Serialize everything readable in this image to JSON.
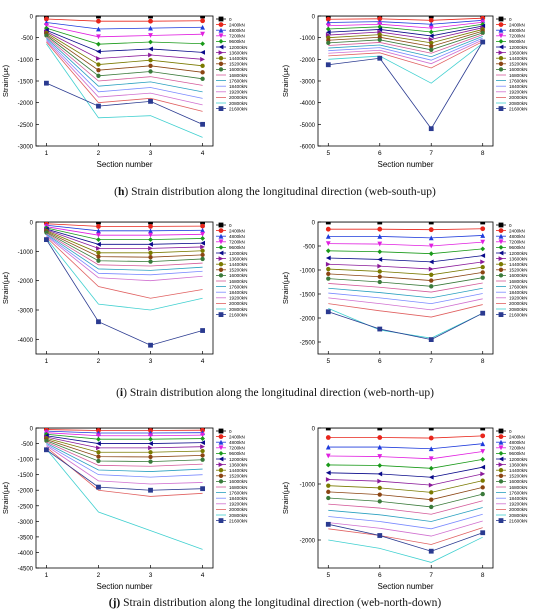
{
  "legend_labels": [
    "0",
    "2400kN",
    "4800kN",
    "7200kN",
    "9600kN",
    "12000kN",
    "13600kN",
    "14400kN",
    "15200kN",
    "16000kN",
    "16800kN",
    "17600kN",
    "18400kN",
    "19200kN",
    "20000kN",
    "20800kN",
    "21600kN"
  ],
  "series_colors": [
    "#000000",
    "#e8261c",
    "#1f3bdc",
    "#e020e0",
    "#1a9a1a",
    "#0a0a8a",
    "#8a1a9a",
    "#7a7a00",
    "#8b4513",
    "#3a7a3a",
    "#d45a9a",
    "#2aa0c0",
    "#7a8aff",
    "#d070d0",
    "#e06060",
    "#40d0d0",
    "#2a3a90"
  ],
  "series_markers": [
    "square",
    "circle",
    "triangle-up",
    "triangle-down",
    "diamond",
    "triangle-left",
    "triangle-right",
    "hexagon",
    "star",
    "pentagon",
    "none",
    "none",
    "none",
    "none",
    "none",
    "none",
    "square"
  ],
  "captions": [
    {
      "letter": "h",
      "text": " Strain distribution along the longitudinal direction (web-south-up)"
    },
    {
      "letter": "i",
      "text": " Strain distribution along the longitudinal direction (web-north-up)"
    },
    {
      "letter": "j",
      "text": " Strain distribution along the longitudinal direction (web-north-down)",
      "paren_bold": true
    }
  ],
  "chart_data": [
    {
      "type": "line",
      "xlabel": "Section number",
      "ylabel": "Strain(με)",
      "x": [
        1,
        2,
        3,
        4
      ],
      "ylim": [
        -3000,
        0
      ],
      "yticks": [
        0,
        -500,
        -1000,
        -1500,
        -2000,
        -2500,
        -3000
      ],
      "series": [
        {
          "name": "0",
          "values": [
            0,
            0,
            0,
            0
          ]
        },
        {
          "name": "2400kN",
          "values": [
            -70,
            -120,
            -120,
            -110
          ]
        },
        {
          "name": "4800kN",
          "values": [
            -150,
            -300,
            -280,
            -260
          ]
        },
        {
          "name": "7200kN",
          "values": [
            -220,
            -480,
            -450,
            -420
          ]
        },
        {
          "name": "9600kN",
          "values": [
            -280,
            -650,
            -600,
            -640
          ]
        },
        {
          "name": "12000kN",
          "values": [
            -330,
            -820,
            -760,
            -840
          ]
        },
        {
          "name": "13600kN",
          "values": [
            -360,
            -980,
            -900,
            -1000
          ]
        },
        {
          "name": "14400kN",
          "values": [
            -390,
            -1120,
            -1020,
            -1150
          ]
        },
        {
          "name": "15200kN",
          "values": [
            -420,
            -1250,
            -1150,
            -1300
          ]
        },
        {
          "name": "16000kN",
          "values": [
            -450,
            -1380,
            -1280,
            -1450
          ]
        },
        {
          "name": "16800kN",
          "values": [
            -480,
            -1500,
            -1400,
            -1600
          ]
        },
        {
          "name": "17600kN",
          "values": [
            -510,
            -1620,
            -1520,
            -1750
          ]
        },
        {
          "name": "18400kN",
          "values": [
            -540,
            -1750,
            -1650,
            -1900
          ]
        },
        {
          "name": "19200kN",
          "values": [
            -570,
            -1870,
            -1780,
            -2050
          ]
        },
        {
          "name": "20000kN",
          "values": [
            -600,
            -2000,
            -1900,
            -2200
          ]
        },
        {
          "name": "20800kN",
          "values": [
            -640,
            -2350,
            -2300,
            -2800
          ]
        },
        {
          "name": "21600kN",
          "values": [
            -1550,
            -2080,
            -1970,
            -2500
          ]
        }
      ]
    },
    {
      "type": "line",
      "xlabel": "Section number",
      "ylabel": "Strain(με)",
      "x": [
        5,
        6,
        7,
        8
      ],
      "ylim": [
        -6000,
        0
      ],
      "yticks": [
        0,
        -1000,
        -2000,
        -3000,
        -4000,
        -5000,
        -6000
      ],
      "series": [
        {
          "name": "0",
          "values": [
            0,
            0,
            0,
            0
          ]
        },
        {
          "name": "2400kN",
          "values": [
            -150,
            -130,
            -200,
            -100
          ]
        },
        {
          "name": "4800kN",
          "values": [
            -300,
            -260,
            -380,
            -200
          ]
        },
        {
          "name": "7200kN",
          "values": [
            -450,
            -380,
            -560,
            -290
          ]
        },
        {
          "name": "9600kN",
          "values": [
            -600,
            -500,
            -740,
            -380
          ]
        },
        {
          "name": "12000kN",
          "values": [
            -750,
            -620,
            -920,
            -460
          ]
        },
        {
          "name": "13600kN",
          "values": [
            -880,
            -740,
            -1080,
            -540
          ]
        },
        {
          "name": "14400kN",
          "values": [
            -1000,
            -860,
            -1240,
            -620
          ]
        },
        {
          "name": "15200kN",
          "values": [
            -1120,
            -980,
            -1400,
            -700
          ]
        },
        {
          "name": "16000kN",
          "values": [
            -1240,
            -1100,
            -1560,
            -780
          ]
        },
        {
          "name": "16800kN",
          "values": [
            -1360,
            -1220,
            -1720,
            -860
          ]
        },
        {
          "name": "17600kN",
          "values": [
            -1480,
            -1340,
            -1880,
            -940
          ]
        },
        {
          "name": "18400kN",
          "values": [
            -1600,
            -1460,
            -2040,
            -1020
          ]
        },
        {
          "name": "19200kN",
          "values": [
            -1720,
            -1580,
            -2200,
            -1100
          ]
        },
        {
          "name": "20000kN",
          "values": [
            -1840,
            -1700,
            -2400,
            -1180
          ]
        },
        {
          "name": "20800kN",
          "values": [
            -2000,
            -1850,
            -3100,
            -1260
          ]
        },
        {
          "name": "21600kN",
          "values": [
            -2250,
            -1950,
            -5200,
            -1200
          ]
        }
      ]
    },
    {
      "type": "line",
      "xlabel": "",
      "ylabel": "Strain(με)",
      "x": [
        1,
        2,
        3,
        4
      ],
      "ylim": [
        -4500,
        0
      ],
      "yticks": [
        0,
        -1000,
        -2000,
        -3000,
        -4000
      ],
      "series": [
        {
          "name": "0",
          "values": [
            0,
            0,
            0,
            0
          ]
        },
        {
          "name": "2400kN",
          "values": [
            -60,
            -150,
            -150,
            -140
          ]
        },
        {
          "name": "4800kN",
          "values": [
            -110,
            -300,
            -300,
            -280
          ]
        },
        {
          "name": "7200kN",
          "values": [
            -160,
            -450,
            -450,
            -420
          ]
        },
        {
          "name": "9600kN",
          "values": [
            -200,
            -600,
            -600,
            -560
          ]
        },
        {
          "name": "12000kN",
          "values": [
            -240,
            -760,
            -760,
            -720
          ]
        },
        {
          "name": "13600kN",
          "values": [
            -270,
            -900,
            -900,
            -850
          ]
        },
        {
          "name": "14400kN",
          "values": [
            -300,
            -1050,
            -1050,
            -980
          ]
        },
        {
          "name": "15200kN",
          "values": [
            -330,
            -1180,
            -1200,
            -1120
          ]
        },
        {
          "name": "16000kN",
          "values": [
            -360,
            -1320,
            -1350,
            -1260
          ]
        },
        {
          "name": "16800kN",
          "values": [
            -390,
            -1460,
            -1500,
            -1400
          ]
        },
        {
          "name": "17600kN",
          "values": [
            -420,
            -1600,
            -1650,
            -1540
          ]
        },
        {
          "name": "18400kN",
          "values": [
            -450,
            -1750,
            -1800,
            -1680
          ]
        },
        {
          "name": "19200kN",
          "values": [
            -480,
            -1900,
            -2000,
            -1850
          ]
        },
        {
          "name": "20000kN",
          "values": [
            -520,
            -2200,
            -2600,
            -2300
          ]
        },
        {
          "name": "20800kN",
          "values": [
            -560,
            -2800,
            -3000,
            -2600
          ]
        },
        {
          "name": "21600kN",
          "values": [
            -600,
            -3400,
            -4200,
            -3700
          ]
        }
      ]
    },
    {
      "type": "line",
      "xlabel": "",
      "ylabel": "Strain(με)",
      "x": [
        5,
        6,
        7,
        8
      ],
      "ylim": [
        -2750,
        0
      ],
      "yticks": [
        0,
        -500,
        -1000,
        -1500,
        -2000,
        -2500
      ],
      "series": [
        {
          "name": "0",
          "values": [
            0,
            0,
            0,
            0
          ]
        },
        {
          "name": "2400kN",
          "values": [
            -150,
            -150,
            -160,
            -140
          ]
        },
        {
          "name": "4800kN",
          "values": [
            -300,
            -300,
            -330,
            -280
          ]
        },
        {
          "name": "7200kN",
          "values": [
            -450,
            -460,
            -500,
            -420
          ]
        },
        {
          "name": "9600kN",
          "values": [
            -600,
            -620,
            -660,
            -560
          ]
        },
        {
          "name": "12000kN",
          "values": [
            -750,
            -780,
            -830,
            -700
          ]
        },
        {
          "name": "13600kN",
          "values": [
            -880,
            -920,
            -980,
            -830
          ]
        },
        {
          "name": "14400kN",
          "values": [
            -980,
            -1030,
            -1100,
            -940
          ]
        },
        {
          "name": "15200kN",
          "values": [
            -1080,
            -1140,
            -1220,
            -1050
          ]
        },
        {
          "name": "16000kN",
          "values": [
            -1180,
            -1250,
            -1340,
            -1160
          ]
        },
        {
          "name": "16800kN",
          "values": [
            -1280,
            -1360,
            -1460,
            -1270
          ]
        },
        {
          "name": "17600kN",
          "values": [
            -1380,
            -1470,
            -1580,
            -1380
          ]
        },
        {
          "name": "18400kN",
          "values": [
            -1480,
            -1580,
            -1700,
            -1490
          ]
        },
        {
          "name": "19200kN",
          "values": [
            -1580,
            -1700,
            -1830,
            -1600
          ]
        },
        {
          "name": "20000kN",
          "values": [
            -1700,
            -1850,
            -1980,
            -1720
          ]
        },
        {
          "name": "20800kN",
          "values": [
            -1800,
            -2250,
            -2420,
            -1900
          ]
        },
        {
          "name": "21600kN",
          "values": [
            -1870,
            -2230,
            -2450,
            -1900
          ]
        }
      ]
    },
    {
      "type": "line",
      "xlabel": "Section number",
      "ylabel": "Strain(με)",
      "x": [
        1,
        2,
        3,
        4
      ],
      "ylim": [
        -4500,
        0
      ],
      "yticks": [
        0,
        -500,
        -1000,
        -1500,
        -2000,
        -2500,
        -3000,
        -3500,
        -4000,
        -4500
      ],
      "series": [
        {
          "name": "0",
          "values": [
            0,
            0,
            0,
            0
          ]
        },
        {
          "name": "2400kN",
          "values": [
            -50,
            -80,
            -80,
            -70
          ]
        },
        {
          "name": "4800kN",
          "values": [
            -100,
            -160,
            -160,
            -150
          ]
        },
        {
          "name": "7200kN",
          "values": [
            -150,
            -250,
            -250,
            -230
          ]
        },
        {
          "name": "9600kN",
          "values": [
            -200,
            -360,
            -360,
            -340
          ]
        },
        {
          "name": "12000kN",
          "values": [
            -250,
            -500,
            -500,
            -470
          ]
        },
        {
          "name": "13600kN",
          "values": [
            -290,
            -640,
            -640,
            -600
          ]
        },
        {
          "name": "14400kN",
          "values": [
            -330,
            -780,
            -780,
            -740
          ]
        },
        {
          "name": "15200kN",
          "values": [
            -370,
            -920,
            -930,
            -880
          ]
        },
        {
          "name": "16000kN",
          "values": [
            -410,
            -1060,
            -1080,
            -1020
          ]
        },
        {
          "name": "16800kN",
          "values": [
            -450,
            -1200,
            -1230,
            -1160
          ]
        },
        {
          "name": "17600kN",
          "values": [
            -490,
            -1350,
            -1400,
            -1320
          ]
        },
        {
          "name": "18400kN",
          "values": [
            -530,
            -1500,
            -1580,
            -1500
          ]
        },
        {
          "name": "19200kN",
          "values": [
            -570,
            -1700,
            -1800,
            -1750
          ]
        },
        {
          "name": "20000kN",
          "values": [
            -620,
            -2000,
            -2200,
            -2100
          ]
        },
        {
          "name": "20800kN",
          "values": [
            -680,
            -2700,
            -3300,
            -3900
          ]
        },
        {
          "name": "21600kN",
          "values": [
            -700,
            -1900,
            -2000,
            -1950
          ]
        }
      ]
    },
    {
      "type": "line",
      "xlabel": "Section number",
      "ylabel": "Strain(με)",
      "x": [
        5,
        6,
        7,
        8
      ],
      "ylim": [
        -2500,
        0
      ],
      "yticks": [
        0,
        -1000,
        -2000
      ],
      "series": [
        {
          "name": "0",
          "values": [
            0,
            0,
            0,
            0
          ]
        },
        {
          "name": "2400kN",
          "values": [
            -170,
            -170,
            -180,
            -140
          ]
        },
        {
          "name": "4800kN",
          "values": [
            -340,
            -340,
            -370,
            -280
          ]
        },
        {
          "name": "7200kN",
          "values": [
            -500,
            -510,
            -550,
            -420
          ]
        },
        {
          "name": "9600kN",
          "values": [
            -660,
            -670,
            -720,
            -560
          ]
        },
        {
          "name": "12000kN",
          "values": [
            -800,
            -820,
            -880,
            -700
          ]
        },
        {
          "name": "13600kN",
          "values": [
            -920,
            -950,
            -1020,
            -820
          ]
        },
        {
          "name": "14400kN",
          "values": [
            -1030,
            -1070,
            -1150,
            -940
          ]
        },
        {
          "name": "15200kN",
          "values": [
            -1140,
            -1190,
            -1280,
            -1060
          ]
        },
        {
          "name": "16000kN",
          "values": [
            -1250,
            -1310,
            -1410,
            -1180
          ]
        },
        {
          "name": "16800kN",
          "values": [
            -1360,
            -1430,
            -1540,
            -1300
          ]
        },
        {
          "name": "17600kN",
          "values": [
            -1470,
            -1550,
            -1670,
            -1420
          ]
        },
        {
          "name": "18400kN",
          "values": [
            -1580,
            -1670,
            -1800,
            -1540
          ]
        },
        {
          "name": "19200kN",
          "values": [
            -1690,
            -1790,
            -1930,
            -1660
          ]
        },
        {
          "name": "20000kN",
          "values": [
            -1800,
            -1920,
            -2080,
            -1780
          ]
        },
        {
          "name": "20800kN",
          "values": [
            -2000,
            -2150,
            -2400,
            -1950
          ]
        },
        {
          "name": "21600kN",
          "values": [
            -1720,
            -1920,
            -2200,
            -1870
          ]
        }
      ]
    }
  ]
}
